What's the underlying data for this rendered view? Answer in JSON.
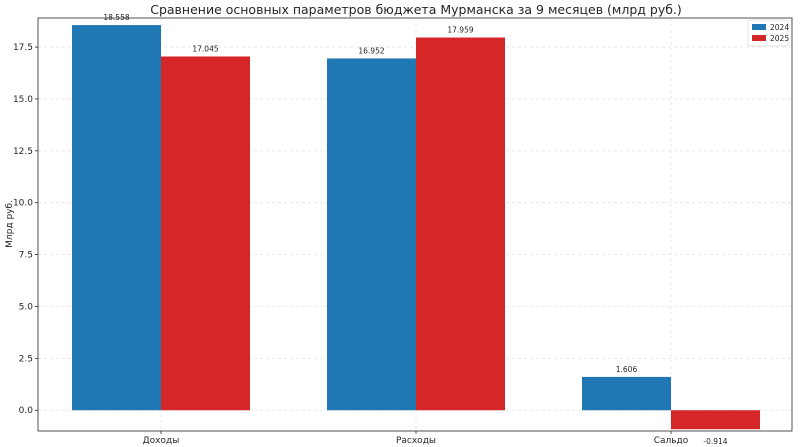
{
  "chart_data": {
    "type": "bar",
    "title": "Сравнение основных параметров бюджета Мурманска за 9 месяцев (млрд руб.)",
    "xlabel": "",
    "ylabel": "Млрд руб.",
    "categories": [
      "Доходы",
      "Расходы",
      "Сальдо"
    ],
    "series": [
      {
        "name": "2024",
        "color": "#1f77b4",
        "values": [
          18.558,
          16.952,
          1.606
        ],
        "labels": [
          "18.558",
          "16.952",
          "1.606"
        ]
      },
      {
        "name": "2025",
        "color": "#d62728",
        "values": [
          17.045,
          17.959,
          -0.914
        ],
        "labels": [
          "17.045",
          "17.959",
          "-0.914"
        ]
      }
    ],
    "yticks": [
      "0.0",
      "2.5",
      "5.0",
      "7.5",
      "10.0",
      "12.5",
      "15.0",
      "17.5"
    ],
    "ylim": [
      -1.0,
      18.9
    ],
    "grid": true,
    "legend_position": "top-right"
  }
}
